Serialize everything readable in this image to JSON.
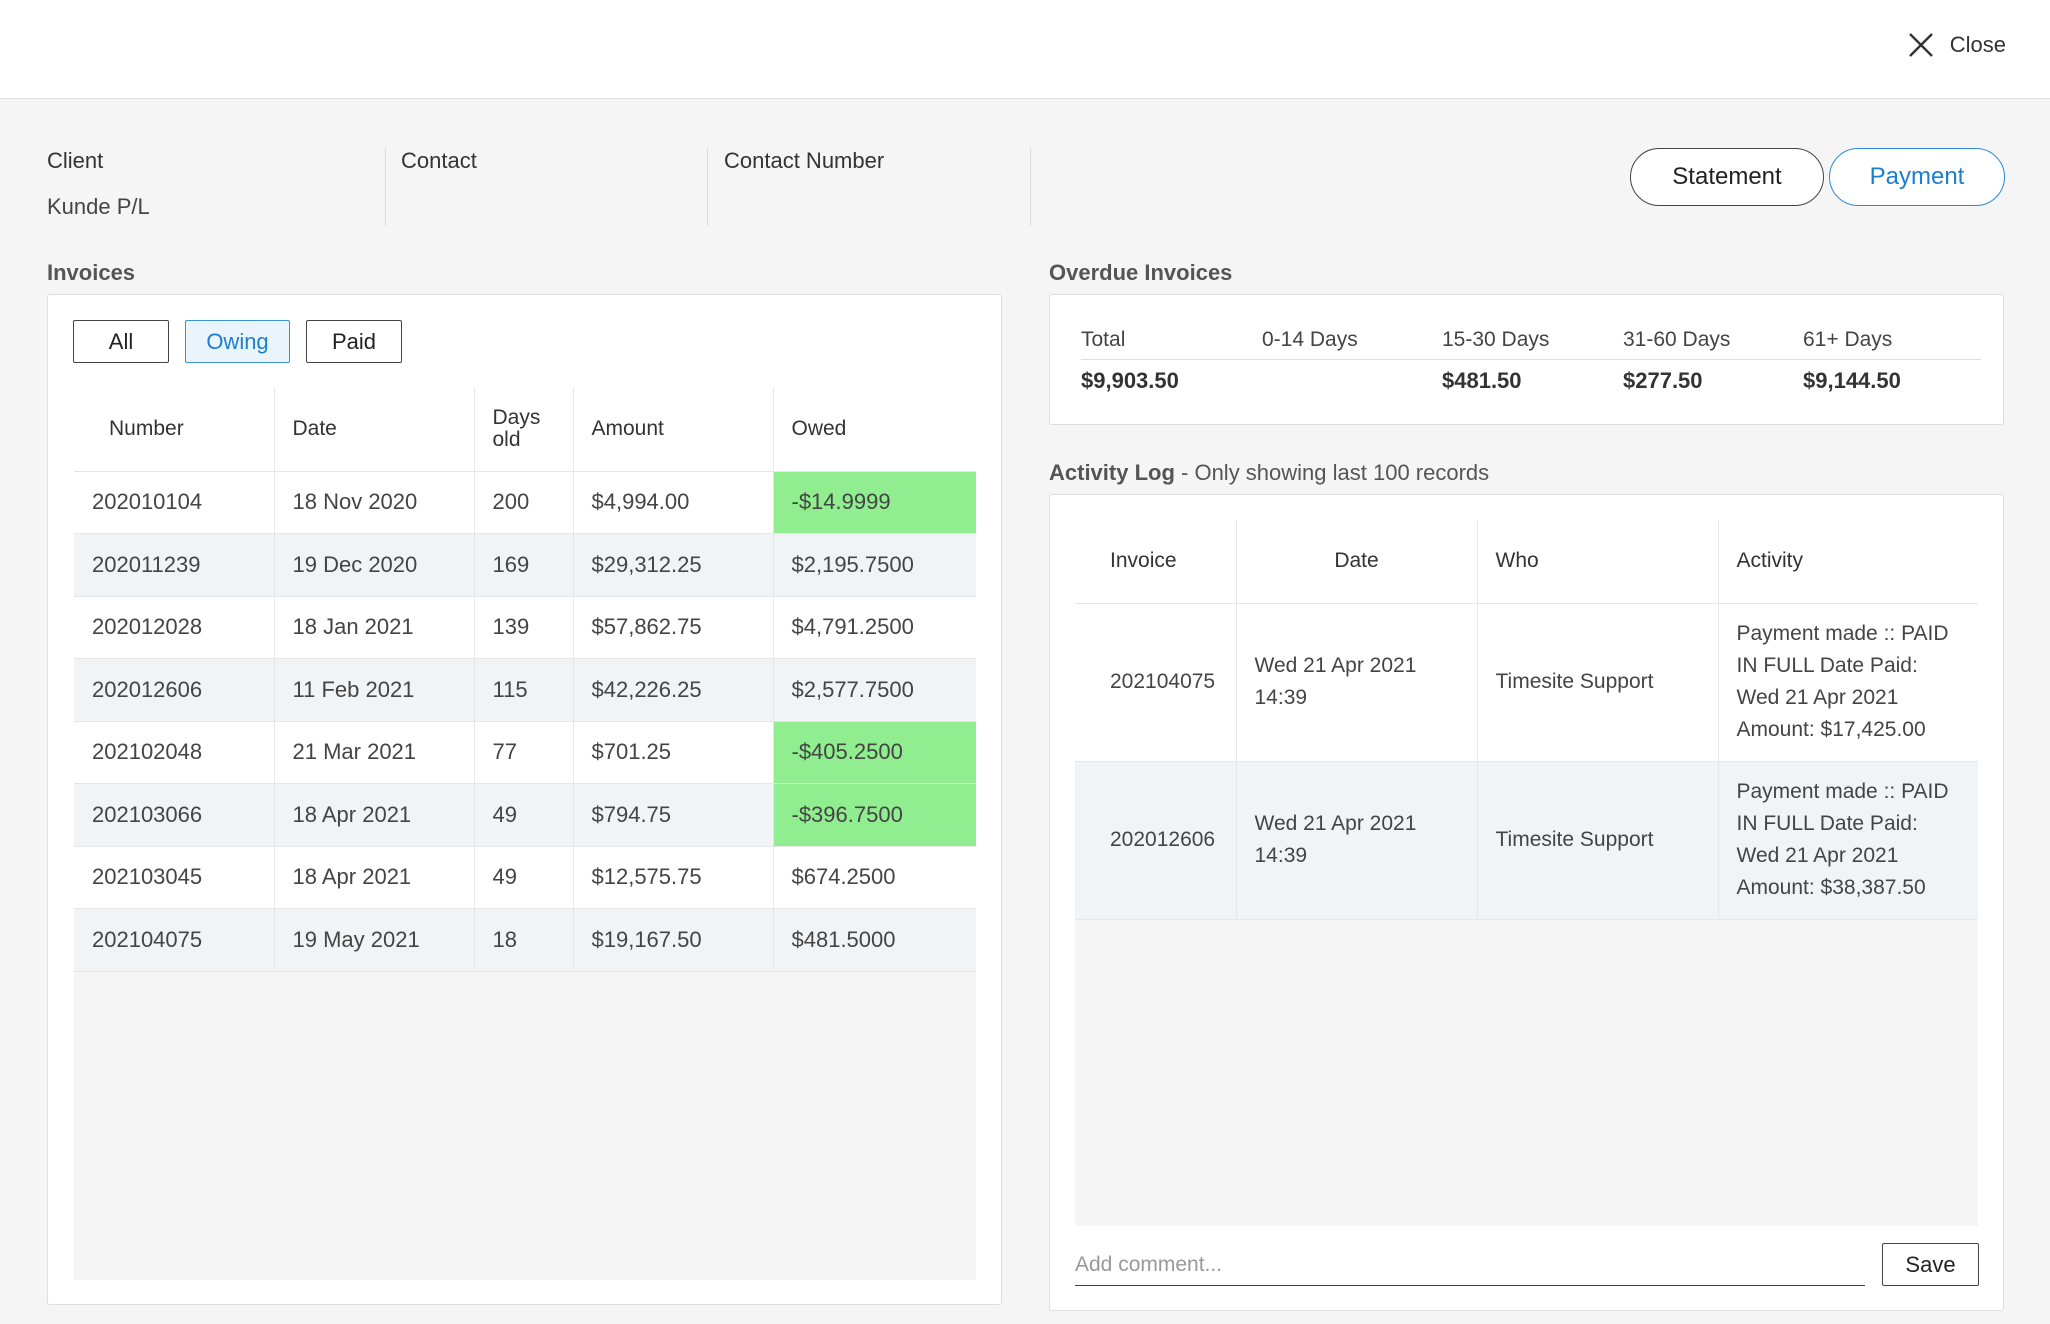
{
  "header": {
    "close_label": "Close"
  },
  "client_info": {
    "client_label": "Client",
    "client_value": "Kunde P/L",
    "contact_label": "Contact",
    "contact_value": "",
    "contact_number_label": "Contact Number",
    "contact_number_value": ""
  },
  "actions": {
    "statement_label": "Statement",
    "payment_label": "Payment"
  },
  "invoices": {
    "title": "Invoices",
    "filters": {
      "all": "All",
      "owing": "Owing",
      "paid": "Paid",
      "active": "Owing"
    },
    "columns": {
      "number": "Number",
      "date": "Date",
      "days_old_1": "Days",
      "days_old_2": "old",
      "amount": "Amount",
      "owed": "Owed"
    },
    "rows": [
      {
        "number": "202010104",
        "date": "18 Nov 2020",
        "days": "200",
        "amount": "$4,994.00",
        "owed": "-$14.9999",
        "negative": true
      },
      {
        "number": "202011239",
        "date": "19 Dec 2020",
        "days": "169",
        "amount": "$29,312.25",
        "owed": "$2,195.7500",
        "negative": false
      },
      {
        "number": "202012028",
        "date": "18 Jan 2021",
        "days": "139",
        "amount": "$57,862.75",
        "owed": "$4,791.2500",
        "negative": false
      },
      {
        "number": "202012606",
        "date": "11 Feb 2021",
        "days": "115",
        "amount": "$42,226.25",
        "owed": "$2,577.7500",
        "negative": false
      },
      {
        "number": "202102048",
        "date": "21 Mar 2021",
        "days": "77",
        "amount": "$701.25",
        "owed": "-$405.2500",
        "negative": true
      },
      {
        "number": "202103066",
        "date": "18 Apr 2021",
        "days": "49",
        "amount": "$794.75",
        "owed": "-$396.7500",
        "negative": true
      },
      {
        "number": "202103045",
        "date": "18 Apr 2021",
        "days": "49",
        "amount": "$12,575.75",
        "owed": "$674.2500",
        "negative": false
      },
      {
        "number": "202104075",
        "date": "19 May 2021",
        "days": "18",
        "amount": "$19,167.50",
        "owed": "$481.5000",
        "negative": false
      }
    ]
  },
  "overdue": {
    "title": "Overdue Invoices",
    "headers": {
      "total": "Total",
      "d0_14": "0-14 Days",
      "d15_30": "15-30 Days",
      "d31_60": "31-60 Days",
      "d61": "61+ Days"
    },
    "values": {
      "total": "$9,903.50",
      "d0_14": "",
      "d15_30": "$481.50",
      "d31_60": "$277.50",
      "d61": "$9,144.50"
    }
  },
  "activity": {
    "title": "Activity Log",
    "subtitle": " - Only showing last 100 records",
    "columns": {
      "invoice": "Invoice",
      "date": "Date",
      "who": "Who",
      "activity": "Activity"
    },
    "rows": [
      {
        "invoice": "202104075",
        "date": "Wed 21 Apr 2021 14:39",
        "who": "Timesite Support",
        "activity": "Payment made :: PAID IN FULL Date Paid: Wed 21 Apr 2021 Amount: $17,425.00"
      },
      {
        "invoice": "202012606",
        "date": "Wed 21 Apr 2021 14:39",
        "who": "Timesite Support",
        "activity": "Payment made :: PAID IN FULL Date Paid: Wed 21 Apr 2021 Amount: $38,387.50"
      }
    ],
    "comment_placeholder": "Add comment...",
    "save_label": "Save"
  },
  "colors": {
    "accent": "#1a7fd0",
    "negative_owed_bg": "#90ee90",
    "alt_row_bg": "#f0f4f7"
  }
}
